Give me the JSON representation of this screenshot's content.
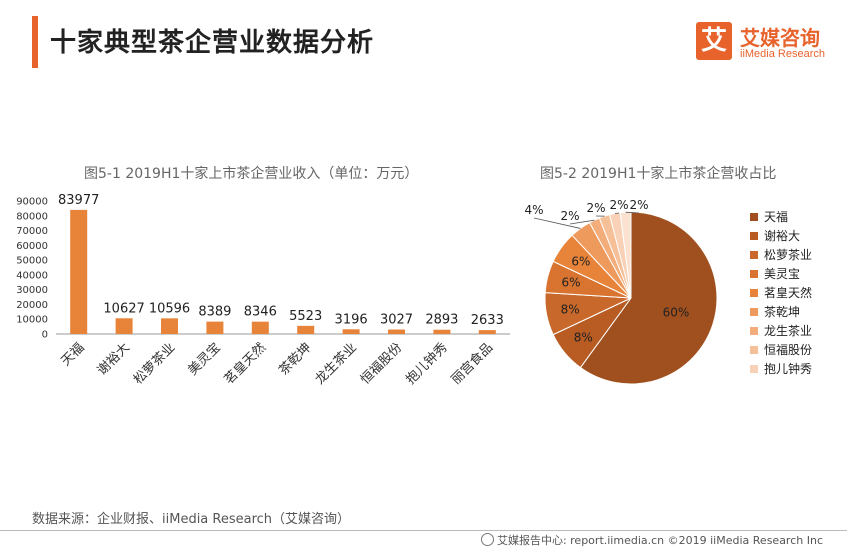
{
  "page": {
    "title": "十家典型茶企营业数据分析",
    "logo_char": "艾",
    "logo_cn": "艾媒咨询",
    "logo_en": "iiMedia Research",
    "source": "数据来源：企业财报、iiMedia Research（艾媒咨询）",
    "footer": "艾媒报告中心: report.iimedia.cn  ©2019  iiMedia Research  Inc"
  },
  "chart_data": [
    {
      "type": "bar",
      "title": "图5-1 2019H1十家上市茶企营业收入（单位：万元）",
      "categories": [
        "天福",
        "谢裕大",
        "松萝茶业",
        "美灵宝",
        "茗皇天然",
        "茶乾坤",
        "龙生茶业",
        "恒福股份",
        "抱儿钟秀",
        "丽宫食品"
      ],
      "values": [
        83977,
        10627,
        10596,
        8389,
        8346,
        5523,
        3196,
        3027,
        2893,
        2633
      ],
      "ylim": [
        0,
        90000
      ],
      "yticks": [
        0,
        10000,
        20000,
        30000,
        40000,
        50000,
        60000,
        70000,
        80000,
        90000
      ],
      "color": "#e8843a"
    },
    {
      "type": "pie",
      "title": "图5-2 2019H1十家上市茶企营收占比",
      "series": [
        {
          "name": "天福",
          "value": 60,
          "label": "60%",
          "color": "#a0501e"
        },
        {
          "name": "谢裕大",
          "value": 8,
          "label": "8%",
          "color": "#b85c24"
        },
        {
          "name": "松萝茶业",
          "value": 8,
          "label": "8%",
          "color": "#c8682a"
        },
        {
          "name": "美灵宝",
          "value": 6,
          "label": "6%",
          "color": "#d87330"
        },
        {
          "name": "茗皇天然",
          "value": 6,
          "label": "6%",
          "color": "#e8843a"
        },
        {
          "name": "茶乾坤",
          "value": 4,
          "label": "4%",
          "color": "#ee9a5c"
        },
        {
          "name": "龙生茶业",
          "value": 2,
          "label": "2%",
          "color": "#f2ad7a"
        },
        {
          "name": "恒福股份",
          "value": 2,
          "label": "2%",
          "color": "#f5bf98"
        },
        {
          "name": "抱儿钟秀",
          "value": 2,
          "label": "2%",
          "color": "#f8d1b6"
        },
        {
          "name": "丽宫食品",
          "value": 2,
          "label": "2%",
          "color": "#fbe1d0"
        }
      ],
      "legend_entries": [
        "天福",
        "谢裕大",
        "松萝茶业",
        "美灵宝",
        "茗皇天然",
        "茶乾坤",
        "龙生茶业",
        "恒福股份",
        "抱儿钟秀"
      ],
      "legend_position": "right"
    }
  ]
}
